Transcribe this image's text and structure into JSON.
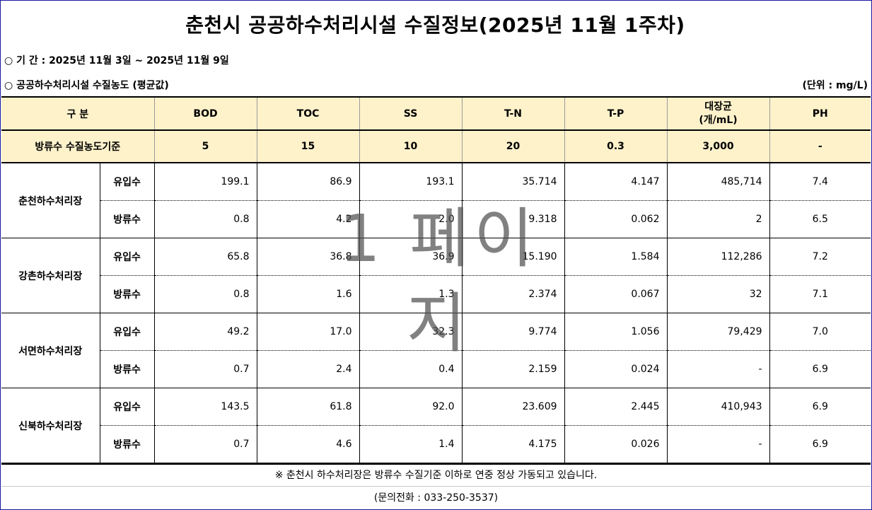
{
  "title": "춘천시 공공하수처리시설 수질정보(2025년 11월 1주차)",
  "period": "○ 기  간  :  2025년 11월 3일 ~ 2025년 11월 9일",
  "subtitle": "○ 공공하수처리시설 수질농도 (평균값)",
  "unit": "(단위 : mg/L)",
  "header": {
    "category": "구 분",
    "cols": [
      "BOD",
      "TOC",
      "SS",
      "T-N",
      "T-P",
      "대장균\n(개/mL)",
      "PH"
    ],
    "coliform_line1": "대장균",
    "coliform_line2": "(개/mL)"
  },
  "standard": {
    "label": "방류수 수질농도기준",
    "values": [
      "5",
      "15",
      "10",
      "20",
      "0.3",
      "3,000",
      "-"
    ]
  },
  "plants": [
    {
      "name": "춘천하수처리장",
      "rows": [
        {
          "kind": "유입수",
          "values": [
            "199.1",
            "86.9",
            "193.1",
            "35.714",
            "4.147",
            "485,714",
            "7.4"
          ]
        },
        {
          "kind": "방류수",
          "values": [
            "0.8",
            "4.2",
            "2.0",
            "9.318",
            "0.062",
            "2",
            "6.5"
          ]
        }
      ]
    },
    {
      "name": "강촌하수처리장",
      "rows": [
        {
          "kind": "유입수",
          "values": [
            "65.8",
            "36.8",
            "36.9",
            "15.190",
            "1.584",
            "112,286",
            "7.2"
          ]
        },
        {
          "kind": "방류수",
          "values": [
            "0.8",
            "1.6",
            "1.3",
            "2.374",
            "0.067",
            "32",
            "7.1"
          ]
        }
      ]
    },
    {
      "name": "서면하수처리장",
      "rows": [
        {
          "kind": "유입수",
          "values": [
            "49.2",
            "17.0",
            "32.3",
            "9.774",
            "1.056",
            "79,429",
            "7.0"
          ]
        },
        {
          "kind": "방류수",
          "values": [
            "0.7",
            "2.4",
            "0.4",
            "2.159",
            "0.024",
            "-",
            "6.9"
          ]
        }
      ]
    },
    {
      "name": "신북하수처리장",
      "rows": [
        {
          "kind": "유입수",
          "values": [
            "143.5",
            "61.8",
            "92.0",
            "23.609",
            "2.445",
            "410,943",
            "6.9"
          ]
        },
        {
          "kind": "방류수",
          "values": [
            "0.7",
            "4.6",
            "1.4",
            "4.175",
            "0.026",
            "-",
            "6.9"
          ]
        }
      ]
    }
  ],
  "notice": "※ 춘천시 하수처리장은 방류수 수질기준 이하로 연중 정상 가동되고 있습니다.",
  "contact": "(문의전화 : 033-250-3537)",
  "watermark": "1 페이지"
}
